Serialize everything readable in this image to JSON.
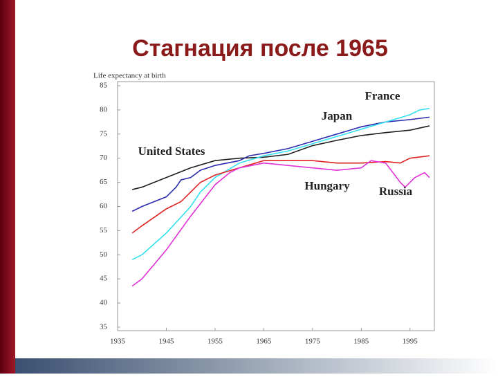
{
  "slide": {
    "title": "Стагнация после 1965"
  },
  "chart_data": {
    "type": "line",
    "ylabel": "Life expectancy at birth",
    "xlim": [
      1935,
      2000
    ],
    "xticks": [
      1935,
      1945,
      1955,
      1965,
      1975,
      1985,
      1995
    ],
    "ylim": [
      35,
      85
    ],
    "yticks": [
      35,
      40,
      45,
      50,
      55,
      60,
      65,
      70,
      75,
      80,
      85
    ],
    "grid": false,
    "series": [
      {
        "name": "United States",
        "color": "#1e1e1e",
        "x": [
          1938,
          1940,
          1945,
          1950,
          1955,
          1960,
          1965,
          1970,
          1975,
          1980,
          1985,
          1990,
          1995,
          1999
        ],
        "values": [
          63.5,
          64,
          66,
          68,
          69.5,
          70,
          70.2,
          70.8,
          72.6,
          73.7,
          74.7,
          75.3,
          75.8,
          76.7
        ]
      },
      {
        "name": "Japan",
        "color": "#2b2bb0",
        "x": [
          1938,
          1940,
          1945,
          1947,
          1948,
          1950,
          1952,
          1955,
          1960,
          1962,
          1965,
          1970,
          1975,
          1980,
          1985,
          1990,
          1995,
          1999
        ],
        "values": [
          59,
          60,
          62,
          64,
          65.5,
          66,
          67.5,
          68.5,
          69.5,
          70.5,
          71,
          72,
          73.5,
          75,
          76.5,
          77.5,
          78,
          78.5
        ]
      },
      {
        "name": "France",
        "color": "#33e0f0",
        "x": [
          1938,
          1940,
          1945,
          1950,
          1952,
          1955,
          1960,
          1965,
          1970,
          1975,
          1980,
          1985,
          1990,
          1995,
          1997,
          1999
        ],
        "values": [
          49,
          50,
          54.5,
          60,
          63,
          66,
          69,
          70.5,
          71.5,
          73,
          74.5,
          76,
          77.5,
          79,
          80,
          80.3
        ]
      },
      {
        "name": "Hungary",
        "color": "#e02020",
        "x": [
          1938,
          1940,
          1945,
          1948,
          1950,
          1952,
          1955,
          1960,
          1965,
          1970,
          1975,
          1980,
          1985,
          1990,
          1993,
          1995,
          1999
        ],
        "values": [
          54.5,
          56,
          59.5,
          61,
          63,
          65,
          66.5,
          68,
          69.5,
          69.5,
          69.5,
          69,
          69,
          69.3,
          69,
          70,
          70.5
        ]
      },
      {
        "name": "Russia",
        "color": "#e030d8",
        "x": [
          1938,
          1940,
          1945,
          1950,
          1955,
          1958,
          1960,
          1965,
          1970,
          1975,
          1980,
          1985,
          1987,
          1990,
          1993,
          1994,
          1996,
          1998,
          1999
        ],
        "values": [
          43.5,
          45,
          51,
          58,
          64.5,
          67,
          68,
          69,
          68.5,
          68,
          67.5,
          68,
          69.5,
          69,
          65,
          64,
          66,
          67,
          66
        ]
      }
    ]
  }
}
